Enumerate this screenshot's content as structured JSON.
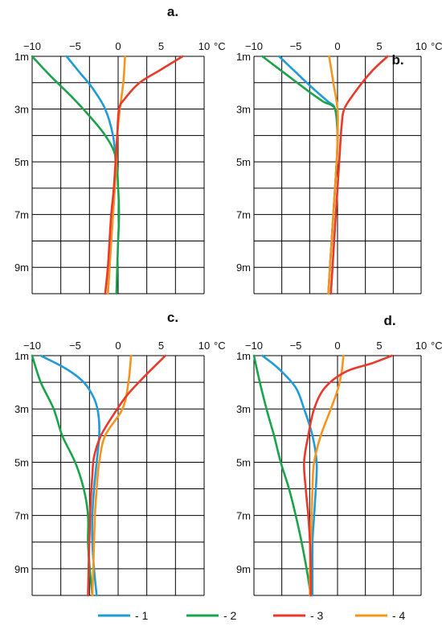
{
  "x_unit": "°C",
  "colors": {
    "1": "#1f9bd7",
    "2": "#1aa34a",
    "3": "#e8392b",
    "4": "#f7941d"
  },
  "legend": [
    {
      "key": "1",
      "label": "- 1"
    },
    {
      "key": "2",
      "label": "- 2"
    },
    {
      "key": "3",
      "label": "- 3"
    },
    {
      "key": "4",
      "label": "- 4"
    }
  ],
  "chart_data": [
    {
      "type": "line",
      "panel_label": "a.",
      "x_ticks": [
        "−10",
        "−5",
        "0",
        "5",
        "10"
      ],
      "y_ticks": [
        "1m",
        "3m",
        "5m",
        "7m",
        "9m"
      ],
      "xlim": [
        -10,
        10
      ],
      "ylim": [
        1,
        10
      ],
      "series": [
        {
          "key": "1",
          "points": [
            [
              -6,
              1
            ],
            [
              -4.5,
              1.6
            ],
            [
              -3,
              2.2
            ],
            [
              -1.5,
              3
            ],
            [
              -0.6,
              4
            ],
            [
              -0.3,
              5
            ],
            [
              -0.4,
              6
            ],
            [
              -0.6,
              7
            ],
            [
              -0.8,
              8
            ],
            [
              -1,
              9
            ],
            [
              -1.2,
              10
            ]
          ]
        },
        {
          "key": "2",
          "points": [
            [
              -10,
              1
            ],
            [
              -8,
              1.7
            ],
            [
              -5.5,
              2.5
            ],
            [
              -3.5,
              3.2
            ],
            [
              -1.5,
              4
            ],
            [
              -0.3,
              4.8
            ],
            [
              0,
              6
            ],
            [
              0.1,
              7
            ],
            [
              0,
              8
            ],
            [
              -0.1,
              9
            ],
            [
              -0.2,
              10
            ]
          ]
        },
        {
          "key": "3",
          "points": [
            [
              7.5,
              1
            ],
            [
              5,
              1.5
            ],
            [
              2.5,
              2
            ],
            [
              0.8,
              2.6
            ],
            [
              0.1,
              3
            ],
            [
              -0.1,
              4
            ],
            [
              -0.3,
              5
            ],
            [
              -0.5,
              6
            ],
            [
              -0.8,
              7
            ],
            [
              -1,
              8
            ],
            [
              -1.2,
              9
            ],
            [
              -1.5,
              10
            ]
          ]
        },
        {
          "key": "4",
          "points": [
            [
              0.8,
              1
            ],
            [
              0.6,
              2
            ],
            [
              0.2,
              3
            ],
            [
              -0.1,
              4
            ],
            [
              -0.2,
              5
            ],
            [
              -0.4,
              6
            ],
            [
              -0.6,
              7
            ],
            [
              -0.8,
              8
            ],
            [
              -1,
              9
            ],
            [
              -1.2,
              10
            ]
          ]
        }
      ]
    },
    {
      "type": "line",
      "panel_label": "b.",
      "x_ticks": [
        "−10",
        "−5",
        "0",
        "5",
        "10"
      ],
      "y_ticks": [
        "1m",
        "3m",
        "5m",
        "7m",
        "9m"
      ],
      "xlim": [
        -10,
        10
      ],
      "ylim": [
        1,
        10
      ],
      "series": [
        {
          "key": "1",
          "points": [
            [
              -7,
              1
            ],
            [
              -5,
              1.6
            ],
            [
              -3,
              2.2
            ],
            [
              -1.2,
              2.7
            ],
            [
              -0.3,
              3
            ],
            [
              0,
              4
            ],
            [
              -0.1,
              5
            ],
            [
              -0.3,
              6
            ],
            [
              -0.5,
              7
            ],
            [
              -0.7,
              8
            ],
            [
              -0.9,
              9
            ],
            [
              -1.1,
              10
            ]
          ]
        },
        {
          "key": "2",
          "points": [
            [
              -9,
              1
            ],
            [
              -6.5,
              1.6
            ],
            [
              -4,
              2.2
            ],
            [
              -1.8,
              2.7
            ],
            [
              -0.3,
              3
            ],
            [
              0,
              4
            ],
            [
              -0.1,
              5
            ],
            [
              -0.3,
              6
            ],
            [
              -0.5,
              7
            ],
            [
              -0.7,
              8
            ],
            [
              -0.9,
              9
            ],
            [
              -1.1,
              10
            ]
          ]
        },
        {
          "key": "3",
          "points": [
            [
              6,
              1
            ],
            [
              4,
              1.6
            ],
            [
              2,
              2.4
            ],
            [
              0.8,
              3
            ],
            [
              0.5,
              3.6
            ],
            [
              0.3,
              4.5
            ],
            [
              0.2,
              5
            ],
            [
              0,
              6
            ],
            [
              -0.2,
              7
            ],
            [
              -0.4,
              8
            ],
            [
              -0.6,
              9
            ],
            [
              -0.8,
              10
            ]
          ]
        },
        {
          "key": "4",
          "points": [
            [
              -1,
              1
            ],
            [
              -0.5,
              2
            ],
            [
              0,
              3
            ],
            [
              0,
              4
            ],
            [
              -0.1,
              5
            ],
            [
              -0.3,
              6
            ],
            [
              -0.5,
              7
            ],
            [
              -0.7,
              8
            ],
            [
              -0.9,
              9
            ],
            [
              -1.1,
              10
            ]
          ]
        }
      ]
    },
    {
      "type": "line",
      "panel_label": "c.",
      "x_ticks": [
        "−10",
        "−5",
        "0",
        "5",
        "10"
      ],
      "y_ticks": [
        "1m",
        "3m",
        "5m",
        "7m",
        "9m"
      ],
      "xlim": [
        -10,
        10
      ],
      "ylim": [
        1,
        10
      ],
      "series": [
        {
          "key": "1",
          "points": [
            [
              -9,
              1
            ],
            [
              -6,
              1.5
            ],
            [
              -4,
              2
            ],
            [
              -2.8,
              2.6
            ],
            [
              -2.3,
              3.2
            ],
            [
              -2.2,
              4
            ],
            [
              -2.5,
              5
            ],
            [
              -2.8,
              6
            ],
            [
              -3,
              7
            ],
            [
              -3,
              8
            ],
            [
              -2.8,
              9
            ],
            [
              -2.5,
              10
            ]
          ]
        },
        {
          "key": "2",
          "points": [
            [
              -10,
              1
            ],
            [
              -9,
              2
            ],
            [
              -7.5,
              3
            ],
            [
              -6.5,
              4
            ],
            [
              -5,
              5
            ],
            [
              -4,
              6
            ],
            [
              -3.5,
              7
            ],
            [
              -3.5,
              8
            ],
            [
              -3.3,
              9
            ],
            [
              -3,
              10
            ]
          ]
        },
        {
          "key": "3",
          "points": [
            [
              5.5,
              1
            ],
            [
              3,
              1.8
            ],
            [
              1,
              2.5
            ],
            [
              -0.5,
              3.2
            ],
            [
              -2,
              4
            ],
            [
              -2.8,
              4.8
            ],
            [
              -3,
              5.5
            ],
            [
              -3.2,
              6.5
            ],
            [
              -3.3,
              7.5
            ],
            [
              -3.4,
              8.5
            ],
            [
              -3.5,
              10
            ]
          ]
        },
        {
          "key": "4",
          "points": [
            [
              1.5,
              1
            ],
            [
              1.2,
              2
            ],
            [
              0.5,
              3
            ],
            [
              -1.5,
              4
            ],
            [
              -2.2,
              5
            ],
            [
              -2.5,
              6
            ],
            [
              -2.7,
              7
            ],
            [
              -2.8,
              8
            ],
            [
              -2.9,
              9
            ],
            [
              -3,
              10
            ]
          ]
        }
      ]
    },
    {
      "type": "line",
      "panel_label": "d.",
      "x_ticks": [
        "−10",
        "−5",
        "0",
        "5",
        "10"
      ],
      "y_ticks": [
        "1m",
        "3m",
        "5m",
        "7m",
        "9m"
      ],
      "xlim": [
        -10,
        10
      ],
      "ylim": [
        1,
        10
      ],
      "series": [
        {
          "key": "1",
          "points": [
            [
              -9,
              1
            ],
            [
              -7,
              1.5
            ],
            [
              -5,
              2.2
            ],
            [
              -4,
              3
            ],
            [
              -3,
              4
            ],
            [
              -2.5,
              5
            ],
            [
              -2.6,
              6
            ],
            [
              -2.8,
              7
            ],
            [
              -3,
              8
            ],
            [
              -3,
              9
            ],
            [
              -3,
              10
            ]
          ]
        },
        {
          "key": "2",
          "points": [
            [
              -10,
              1
            ],
            [
              -9.3,
              2
            ],
            [
              -8.5,
              3
            ],
            [
              -7.6,
              4
            ],
            [
              -6.8,
              5
            ],
            [
              -5.8,
              6
            ],
            [
              -5,
              7
            ],
            [
              -4.3,
              8
            ],
            [
              -3.7,
              9
            ],
            [
              -3.2,
              10
            ]
          ]
        },
        {
          "key": "3",
          "points": [
            [
              6.5,
              1
            ],
            [
              4,
              1.3
            ],
            [
              1,
              1.6
            ],
            [
              -1.5,
              2.2
            ],
            [
              -2.8,
              3
            ],
            [
              -3.5,
              4
            ],
            [
              -4,
              5
            ],
            [
              -3.8,
              6
            ],
            [
              -3.5,
              7
            ],
            [
              -3.3,
              8
            ],
            [
              -3.2,
              9
            ],
            [
              -3.2,
              10
            ]
          ]
        },
        {
          "key": "4",
          "points": [
            [
              0.7,
              1
            ],
            [
              0.5,
              1.6
            ],
            [
              0,
              2.3
            ],
            [
              -0.8,
              3
            ],
            [
              -2,
              4
            ],
            [
              -2.8,
              5
            ],
            [
              -3,
              6
            ],
            [
              -3.1,
              7
            ],
            [
              -3.2,
              8
            ],
            [
              -3.3,
              9
            ],
            [
              -3.3,
              10
            ]
          ]
        }
      ]
    }
  ]
}
